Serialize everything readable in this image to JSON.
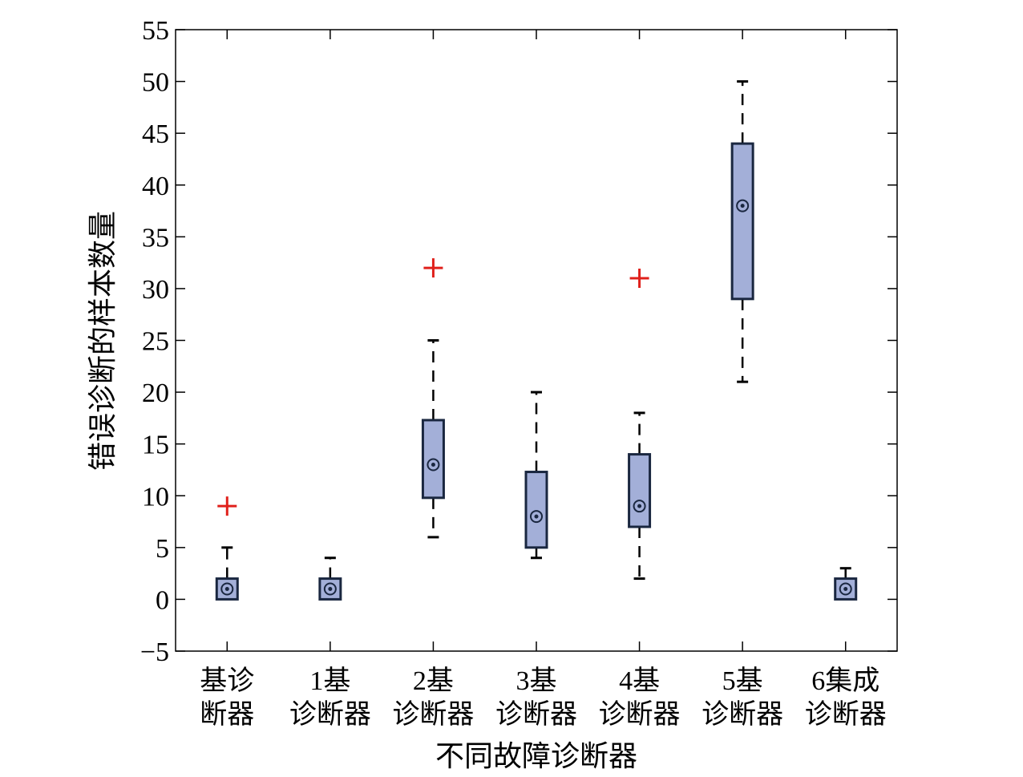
{
  "chart_data": {
    "type": "box",
    "xlabel": "不同故障诊断器",
    "ylabel": "错误诊断的样本数量",
    "ylim": [
      -5,
      55
    ],
    "yticks": [
      "−5",
      "0",
      "5",
      "10",
      "15",
      "20",
      "25",
      "30",
      "35",
      "40",
      "45",
      "50",
      "55"
    ],
    "grid": false,
    "colors": {
      "box_fill": "#a3afd8",
      "box_edge": "#1a2740",
      "outlier": "#e0201b",
      "whisker": "#000000"
    },
    "categories": [
      {
        "line1": "基诊",
        "line2": "断器"
      },
      {
        "line1": "1基",
        "line2": "诊断器"
      },
      {
        "line1": "2基",
        "line2": "诊断器"
      },
      {
        "line1": "3基",
        "line2": "诊断器"
      },
      {
        "line1": "4基",
        "line2": "诊断器"
      },
      {
        "line1": "5基",
        "line2": "诊断器"
      },
      {
        "line1": "6集成",
        "line2": "诊断器"
      }
    ],
    "boxes": [
      {
        "min": 0,
        "q1": 0,
        "median": 1,
        "q3": 2,
        "max": 5,
        "outliers": [
          9
        ]
      },
      {
        "min": 0,
        "q1": 0,
        "median": 1,
        "q3": 2,
        "max": 4,
        "outliers": []
      },
      {
        "min": 6,
        "q1": 9.8,
        "median": 13,
        "q3": 17.3,
        "max": 25,
        "outliers": [
          32
        ]
      },
      {
        "min": 4,
        "q1": 5,
        "median": 8,
        "q3": 12.3,
        "max": 20,
        "outliers": []
      },
      {
        "min": 2,
        "q1": 7,
        "median": 9,
        "q3": 14,
        "max": 18,
        "outliers": [
          31
        ]
      },
      {
        "min": 21,
        "q1": 29,
        "median": 38,
        "q3": 44,
        "max": 50,
        "outliers": []
      },
      {
        "min": 0,
        "q1": 0,
        "median": 1,
        "q3": 2,
        "max": 3,
        "outliers": []
      }
    ]
  }
}
